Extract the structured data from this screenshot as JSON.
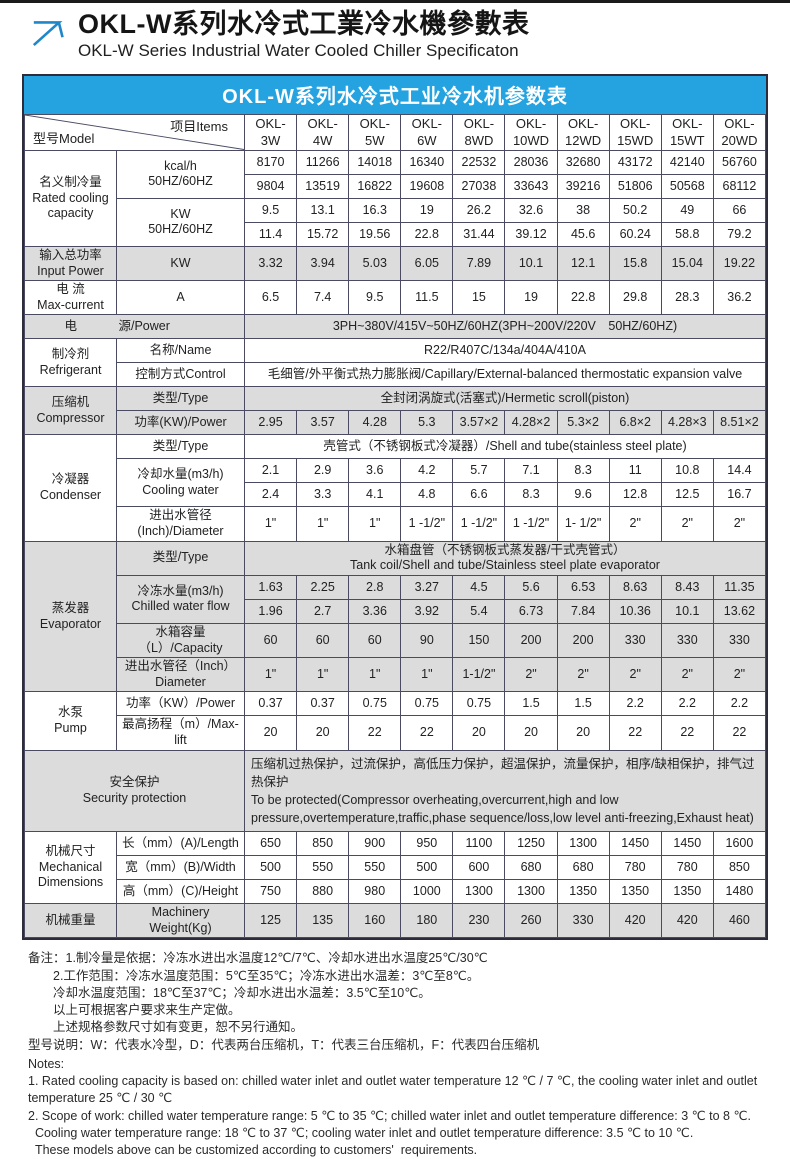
{
  "page": {
    "title_cn": "OKL-W系列水冷式工業冷水機參數表",
    "title_en": "OKL-W Series Industrial Water Cooled Chiller Specificaton"
  },
  "colors": {
    "accent_blue": "#25a3e0",
    "row_gray": "#dcdcdc",
    "border": "#4a4a63",
    "logo_blue": "#1f86c9"
  },
  "table": {
    "title": "OKL-W系列水冷式工业冷水机参数表",
    "corner": {
      "model": "型号Model",
      "items": "项目Items"
    },
    "model_prefix": "OKL-",
    "models": [
      "3W",
      "4W",
      "5W",
      "6W",
      "8WD",
      "10WD",
      "12WD",
      "15WD",
      "15WT",
      "20WD"
    ],
    "rows": [
      {
        "shade": false,
        "cells": [
          {
            "t": "名义制冷量\nRated cooling\ncapacity",
            "rs": 4
          },
          {
            "t": "kcal/h\n50HZ/60HZ",
            "rs": 2
          },
          {
            "t": "8170"
          },
          {
            "t": "11266"
          },
          {
            "t": "14018"
          },
          {
            "t": "16340"
          },
          {
            "t": "22532"
          },
          {
            "t": "28036"
          },
          {
            "t": "32680"
          },
          {
            "t": "43172"
          },
          {
            "t": "42140"
          },
          {
            "t": "56760"
          }
        ]
      },
      {
        "shade": false,
        "cells": [
          {
            "t": "9804"
          },
          {
            "t": "13519"
          },
          {
            "t": "16822"
          },
          {
            "t": "19608"
          },
          {
            "t": "27038"
          },
          {
            "t": "33643"
          },
          {
            "t": "39216"
          },
          {
            "t": "51806"
          },
          {
            "t": "50568"
          },
          {
            "t": "68112"
          }
        ]
      },
      {
        "shade": false,
        "cells": [
          {
            "t": "KW\n50HZ/60HZ",
            "rs": 2
          },
          {
            "t": "9.5"
          },
          {
            "t": "13.1"
          },
          {
            "t": "16.3"
          },
          {
            "t": "19"
          },
          {
            "t": "26.2"
          },
          {
            "t": "32.6"
          },
          {
            "t": "38"
          },
          {
            "t": "50.2"
          },
          {
            "t": "49"
          },
          {
            "t": "66"
          }
        ]
      },
      {
        "shade": false,
        "cells": [
          {
            "t": "11.4"
          },
          {
            "t": "15.72"
          },
          {
            "t": "19.56"
          },
          {
            "t": "22.8"
          },
          {
            "t": "31.44"
          },
          {
            "t": "39.12"
          },
          {
            "t": "45.6"
          },
          {
            "t": "60.24"
          },
          {
            "t": "58.8"
          },
          {
            "t": "79.2"
          }
        ]
      },
      {
        "shade": true,
        "cells": [
          {
            "t": "输入总功率\nInput Power"
          },
          {
            "t": "KW"
          },
          {
            "t": "3.32"
          },
          {
            "t": "3.94"
          },
          {
            "t": "5.03"
          },
          {
            "t": "6.05"
          },
          {
            "t": "7.89"
          },
          {
            "t": "10.1"
          },
          {
            "t": "12.1"
          },
          {
            "t": "15.8"
          },
          {
            "t": "15.04"
          },
          {
            "t": "19.22"
          }
        ]
      },
      {
        "shade": false,
        "cells": [
          {
            "t": "电 流\nMax-current"
          },
          {
            "t": "A"
          },
          {
            "t": "6.5"
          },
          {
            "t": "7.4"
          },
          {
            "t": "9.5"
          },
          {
            "t": "11.5"
          },
          {
            "t": "15"
          },
          {
            "t": "19"
          },
          {
            "t": "22.8"
          },
          {
            "t": "29.8"
          },
          {
            "t": "28.3"
          },
          {
            "t": "36.2"
          }
        ]
      },
      {
        "shade": true,
        "cells": [
          {
            "t": "电",
            "cls": "pa"
          },
          {
            "t": "源/Power",
            "cls": "pb"
          },
          {
            "t": "3PH~380V/415V~50HZ/60HZ(3PH~200V/220V　50HZ/60HZ)",
            "cs": 10
          }
        ]
      },
      {
        "shade": false,
        "cells": [
          {
            "t": "制冷剂\nRefrigerant",
            "rs": 2
          },
          {
            "t": "名称/Name"
          },
          {
            "t": "R22/R407C/134a/404A/410A",
            "cs": 10
          }
        ]
      },
      {
        "shade": false,
        "cells": [
          {
            "t": "控制方式Control"
          },
          {
            "t": "毛细管/外平衡式热力膨胀阀/Capillary/External-balanced thermostatic expansion valve",
            "cs": 10
          }
        ]
      },
      {
        "shade": true,
        "cells": [
          {
            "t": "压缩机\nCompressor",
            "rs": 2
          },
          {
            "t": "类型/Type"
          },
          {
            "t": "全封闭涡旋式(活塞式)/Hermetic scroll(piston)",
            "cs": 10
          }
        ]
      },
      {
        "shade": true,
        "cells": [
          {
            "t": "功率(KW)/Power"
          },
          {
            "t": "2.95"
          },
          {
            "t": "3.57"
          },
          {
            "t": "4.28"
          },
          {
            "t": "5.3"
          },
          {
            "t": "3.57×2"
          },
          {
            "t": "4.28×2"
          },
          {
            "t": "5.3×2"
          },
          {
            "t": "6.8×2"
          },
          {
            "t": "4.28×3"
          },
          {
            "t": "8.51×2"
          }
        ]
      },
      {
        "shade": false,
        "cells": [
          {
            "t": "冷凝器\nCondenser",
            "rs": 4
          },
          {
            "t": "类型/Type"
          },
          {
            "t": "壳管式（不锈钢板式冷凝器）/Shell and tube(stainless steel plate)",
            "cs": 10
          }
        ]
      },
      {
        "shade": false,
        "cells": [
          {
            "t": "冷却水量(m3/h)\nCooling water",
            "rs": 2
          },
          {
            "t": "2.1"
          },
          {
            "t": "2.9"
          },
          {
            "t": "3.6"
          },
          {
            "t": "4.2"
          },
          {
            "t": "5.7"
          },
          {
            "t": "7.1"
          },
          {
            "t": "8.3"
          },
          {
            "t": "11"
          },
          {
            "t": "10.8"
          },
          {
            "t": "14.4"
          }
        ]
      },
      {
        "shade": false,
        "cells": [
          {
            "t": "2.4"
          },
          {
            "t": "3.3"
          },
          {
            "t": "4.1"
          },
          {
            "t": "4.8"
          },
          {
            "t": "6.6"
          },
          {
            "t": "8.3"
          },
          {
            "t": "9.6"
          },
          {
            "t": "12.8"
          },
          {
            "t": "12.5"
          },
          {
            "t": "16.7"
          }
        ]
      },
      {
        "shade": false,
        "cells": [
          {
            "t": "进出水管径\n(Inch)/Diameter"
          },
          {
            "t": "1\""
          },
          {
            "t": "1\""
          },
          {
            "t": "1\""
          },
          {
            "t": "1 -1/2\""
          },
          {
            "t": "1 -1/2\""
          },
          {
            "t": "1 -1/2\""
          },
          {
            "t": "1- 1/2\""
          },
          {
            "t": "2\""
          },
          {
            "t": "2\""
          },
          {
            "t": "2\""
          }
        ]
      },
      {
        "shade": true,
        "cells": [
          {
            "t": "蒸发器\nEvaporator",
            "rs": 5
          },
          {
            "t": "类型/Type"
          },
          {
            "t": "水箱盘管（不锈钢板式蒸发器/干式壳管式）\nTank coil/Shell and tube/Stainless steel plate evaporator",
            "cs": 10
          }
        ]
      },
      {
        "shade": true,
        "cells": [
          {
            "t": "冷冻水量(m3/h)\nChilled water flow",
            "rs": 2
          },
          {
            "t": "1.63"
          },
          {
            "t": "2.25"
          },
          {
            "t": "2.8"
          },
          {
            "t": "3.27"
          },
          {
            "t": "4.5"
          },
          {
            "t": "5.6"
          },
          {
            "t": "6.53"
          },
          {
            "t": "8.63"
          },
          {
            "t": "8.43"
          },
          {
            "t": "11.35"
          }
        ]
      },
      {
        "shade": true,
        "cells": [
          {
            "t": "1.96"
          },
          {
            "t": "2.7"
          },
          {
            "t": "3.36"
          },
          {
            "t": "3.92"
          },
          {
            "t": "5.4"
          },
          {
            "t": "6.73"
          },
          {
            "t": "7.84"
          },
          {
            "t": "10.36"
          },
          {
            "t": "10.1"
          },
          {
            "t": "13.62"
          }
        ]
      },
      {
        "shade": true,
        "cells": [
          {
            "t": "水箱容量（L）/Capacity"
          },
          {
            "t": "60"
          },
          {
            "t": "60"
          },
          {
            "t": "60"
          },
          {
            "t": "90"
          },
          {
            "t": "150"
          },
          {
            "t": "200"
          },
          {
            "t": "200"
          },
          {
            "t": "330"
          },
          {
            "t": "330"
          },
          {
            "t": "330"
          }
        ]
      },
      {
        "shade": true,
        "cells": [
          {
            "t": "进出水管径（Inch）\nDiameter"
          },
          {
            "t": "1\""
          },
          {
            "t": "1\""
          },
          {
            "t": "1\""
          },
          {
            "t": "1\""
          },
          {
            "t": "1-1/2\""
          },
          {
            "t": "2\""
          },
          {
            "t": "2\""
          },
          {
            "t": "2\""
          },
          {
            "t": "2\""
          },
          {
            "t": "2\""
          }
        ]
      },
      {
        "shade": false,
        "cells": [
          {
            "t": "水泵\nPump",
            "rs": 2
          },
          {
            "t": "功率（KW）/Power"
          },
          {
            "t": "0.37"
          },
          {
            "t": "0.37"
          },
          {
            "t": "0.75"
          },
          {
            "t": "0.75"
          },
          {
            "t": "0.75"
          },
          {
            "t": "1.5"
          },
          {
            "t": "1.5"
          },
          {
            "t": "2.2"
          },
          {
            "t": "2.2"
          },
          {
            "t": "2.2"
          }
        ]
      },
      {
        "shade": false,
        "cells": [
          {
            "t": "最高扬程（m）/Max-lift"
          },
          {
            "t": "20"
          },
          {
            "t": "20"
          },
          {
            "t": "22"
          },
          {
            "t": "22"
          },
          {
            "t": "20"
          },
          {
            "t": "20"
          },
          {
            "t": "20"
          },
          {
            "t": "22"
          },
          {
            "t": "22"
          },
          {
            "t": "22"
          }
        ]
      },
      {
        "shade": true,
        "cells": [
          {
            "t": "安全保护\nSecurity protection",
            "cs": 2
          },
          {
            "t": "压缩机过热保护，过流保护，高低压力保护，超温保护，流量保护，相序/缺相保护，排气过热保护\nTo be protected(Compressor overheating,overcurrent,high and low\npressure,overtemperature,traffic,phase sequence/loss,low level anti-freezing,Exhaust heat)",
            "cs": 10,
            "cls": "sec"
          }
        ]
      },
      {
        "shade": false,
        "cells": [
          {
            "t": "机械尺寸\nMechanical\nDimensions",
            "rs": 3
          },
          {
            "t": "长（mm）(A)/Length"
          },
          {
            "t": "650"
          },
          {
            "t": "850"
          },
          {
            "t": "900"
          },
          {
            "t": "950"
          },
          {
            "t": "1100"
          },
          {
            "t": "1250"
          },
          {
            "t": "1300"
          },
          {
            "t": "1450"
          },
          {
            "t": "1450"
          },
          {
            "t": "1600"
          }
        ]
      },
      {
        "shade": false,
        "cells": [
          {
            "t": "宽（mm）(B)/Width"
          },
          {
            "t": "500"
          },
          {
            "t": "550"
          },
          {
            "t": "550"
          },
          {
            "t": "500"
          },
          {
            "t": "600"
          },
          {
            "t": "680"
          },
          {
            "t": "680"
          },
          {
            "t": "780"
          },
          {
            "t": "780"
          },
          {
            "t": "850"
          }
        ]
      },
      {
        "shade": false,
        "cells": [
          {
            "t": "高（mm）(C)/Height"
          },
          {
            "t": "750"
          },
          {
            "t": "880"
          },
          {
            "t": "980"
          },
          {
            "t": "1000"
          },
          {
            "t": "1300"
          },
          {
            "t": "1300"
          },
          {
            "t": "1350"
          },
          {
            "t": "1350"
          },
          {
            "t": "1350"
          },
          {
            "t": "1480"
          }
        ]
      },
      {
        "shade": true,
        "cells": [
          {
            "t": "机械重量"
          },
          {
            "t": "Machinery Weight(Kg)"
          },
          {
            "t": "125"
          },
          {
            "t": "135"
          },
          {
            "t": "160"
          },
          {
            "t": "180"
          },
          {
            "t": "230"
          },
          {
            "t": "260"
          },
          {
            "t": "330"
          },
          {
            "t": "420"
          },
          {
            "t": "420"
          },
          {
            "t": "460"
          }
        ]
      }
    ]
  },
  "notes": {
    "cn": [
      "备注：1.制冷量是依据：冷冻水进出水温度12℃/7℃、冷却水进出水温度25℃/30℃",
      "　　2.工作范围：冷冻水温度范围：5℃至35℃；冷冻水进出水温差：3℃至8℃。",
      "　　冷却水温度范围：18℃至37℃；冷却水进出水温差：3.5℃至10℃。",
      "　　以上可根据客户要求来生产定做。",
      "　　上述规格参数尺寸如有变更，恕不另行通知。",
      "型号说明：W：代表水冷型，D：代表两台压缩机，T：代表三台压缩机，F：代表四台压缩机"
    ],
    "en": [
      "Notes:",
      "1. Rated cooling capacity is based on: chilled water inlet and outlet water temperature 12 ℃ / 7 ℃, the cooling water inlet and outlet",
      "temperature 25 ℃ / 30 ℃",
      "2. Scope of work: chilled water temperature range: 5 ℃ to 35 ℃; chilled water inlet and outlet temperature difference: 3 ℃ to 8 ℃.",
      "  Cooling water temperature range: 18 ℃ to 37 ℃; cooling water inlet and outlet temperature difference: 3.5 ℃ to 10 ℃.",
      "  These models above can be customized according to customers'  requirements."
    ]
  }
}
